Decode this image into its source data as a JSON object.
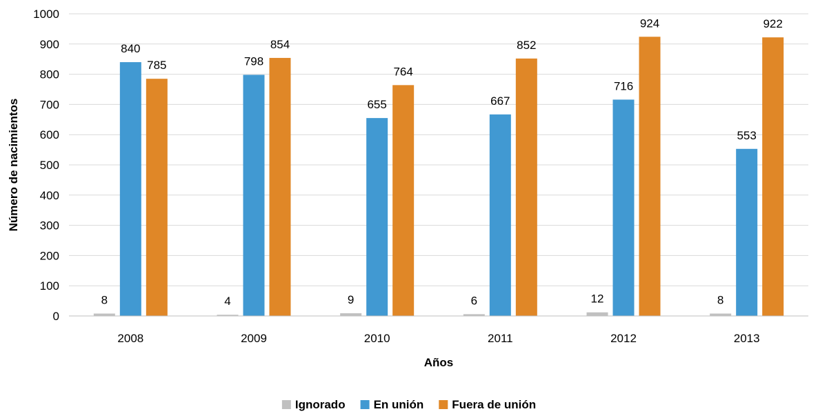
{
  "chart_data": {
    "type": "bar",
    "title": "",
    "xlabel": "Años",
    "ylabel": "Número de nacimientos",
    "categories": [
      "2008",
      "2009",
      "2010",
      "2011",
      "2012",
      "2013"
    ],
    "ylim": [
      0,
      1000
    ],
    "yticks": [
      0,
      100,
      200,
      300,
      400,
      500,
      600,
      700,
      800,
      900,
      1000
    ],
    "grid": true,
    "legend_position": "bottom",
    "series": [
      {
        "name": "Ignorado",
        "color": "#c0c0c0",
        "values": [
          8,
          4,
          9,
          6,
          12,
          8
        ],
        "labels": [
          "8",
          "4",
          "9",
          "6",
          "12",
          "8"
        ]
      },
      {
        "name": "En unión",
        "color": "#4199d2",
        "values": [
          840,
          798,
          655,
          667,
          716,
          553
        ],
        "labels": [
          "840",
          "798",
          "655",
          "667",
          "716",
          "553"
        ]
      },
      {
        "name": "Fuera de unión",
        "color": "#e08727",
        "values": [
          785,
          854,
          764,
          852,
          924,
          922
        ],
        "labels": [
          "785",
          "854",
          "764",
          "852",
          "924",
          "922"
        ]
      }
    ]
  }
}
